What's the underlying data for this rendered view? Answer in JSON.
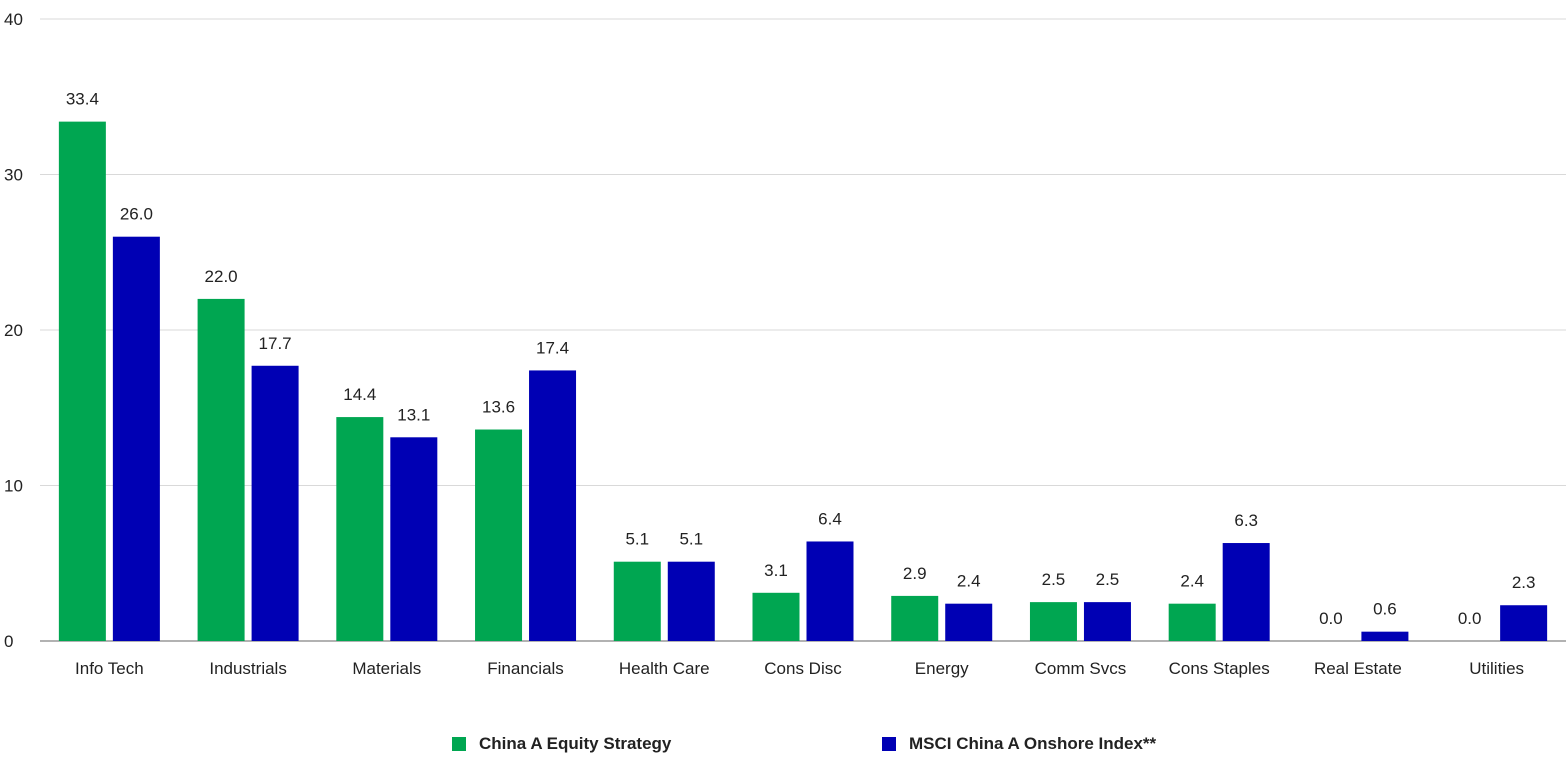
{
  "chart_data": {
    "type": "bar",
    "categories": [
      "Info Tech",
      "Industrials",
      "Materials",
      "Financials",
      "Health Care",
      "Cons Disc",
      "Energy",
      "Comm Svcs",
      "Cons Staples",
      "Real Estate",
      "Utilities"
    ],
    "series": [
      {
        "name": "China A Equity Strategy",
        "color": "#00A651",
        "values": [
          33.4,
          22.0,
          14.4,
          13.6,
          5.1,
          3.1,
          2.9,
          2.5,
          2.4,
          0.0,
          0.0
        ],
        "labels": [
          "33.4",
          "22.0",
          "14.4",
          "13.6",
          "5.1",
          "3.1",
          "2.9",
          "2.5",
          "2.4",
          "0.0",
          "0.0"
        ]
      },
      {
        "name": "MSCI China A Onshore Index**",
        "color": "#0000B4",
        "values": [
          26.0,
          17.7,
          13.1,
          17.4,
          5.1,
          6.4,
          2.4,
          2.5,
          6.3,
          0.6,
          2.3
        ],
        "labels": [
          "26.0",
          "17.7",
          "13.1",
          "17.4",
          "5.1",
          "6.4",
          "2.4",
          "2.5",
          "6.3",
          "0.6",
          "2.3"
        ]
      }
    ],
    "title": "",
    "xlabel": "",
    "ylabel": "",
    "ylim": [
      0,
      40
    ],
    "yticks": [
      "0",
      "10",
      "20",
      "30",
      "40"
    ],
    "grid": true,
    "legend_position": "bottom"
  }
}
